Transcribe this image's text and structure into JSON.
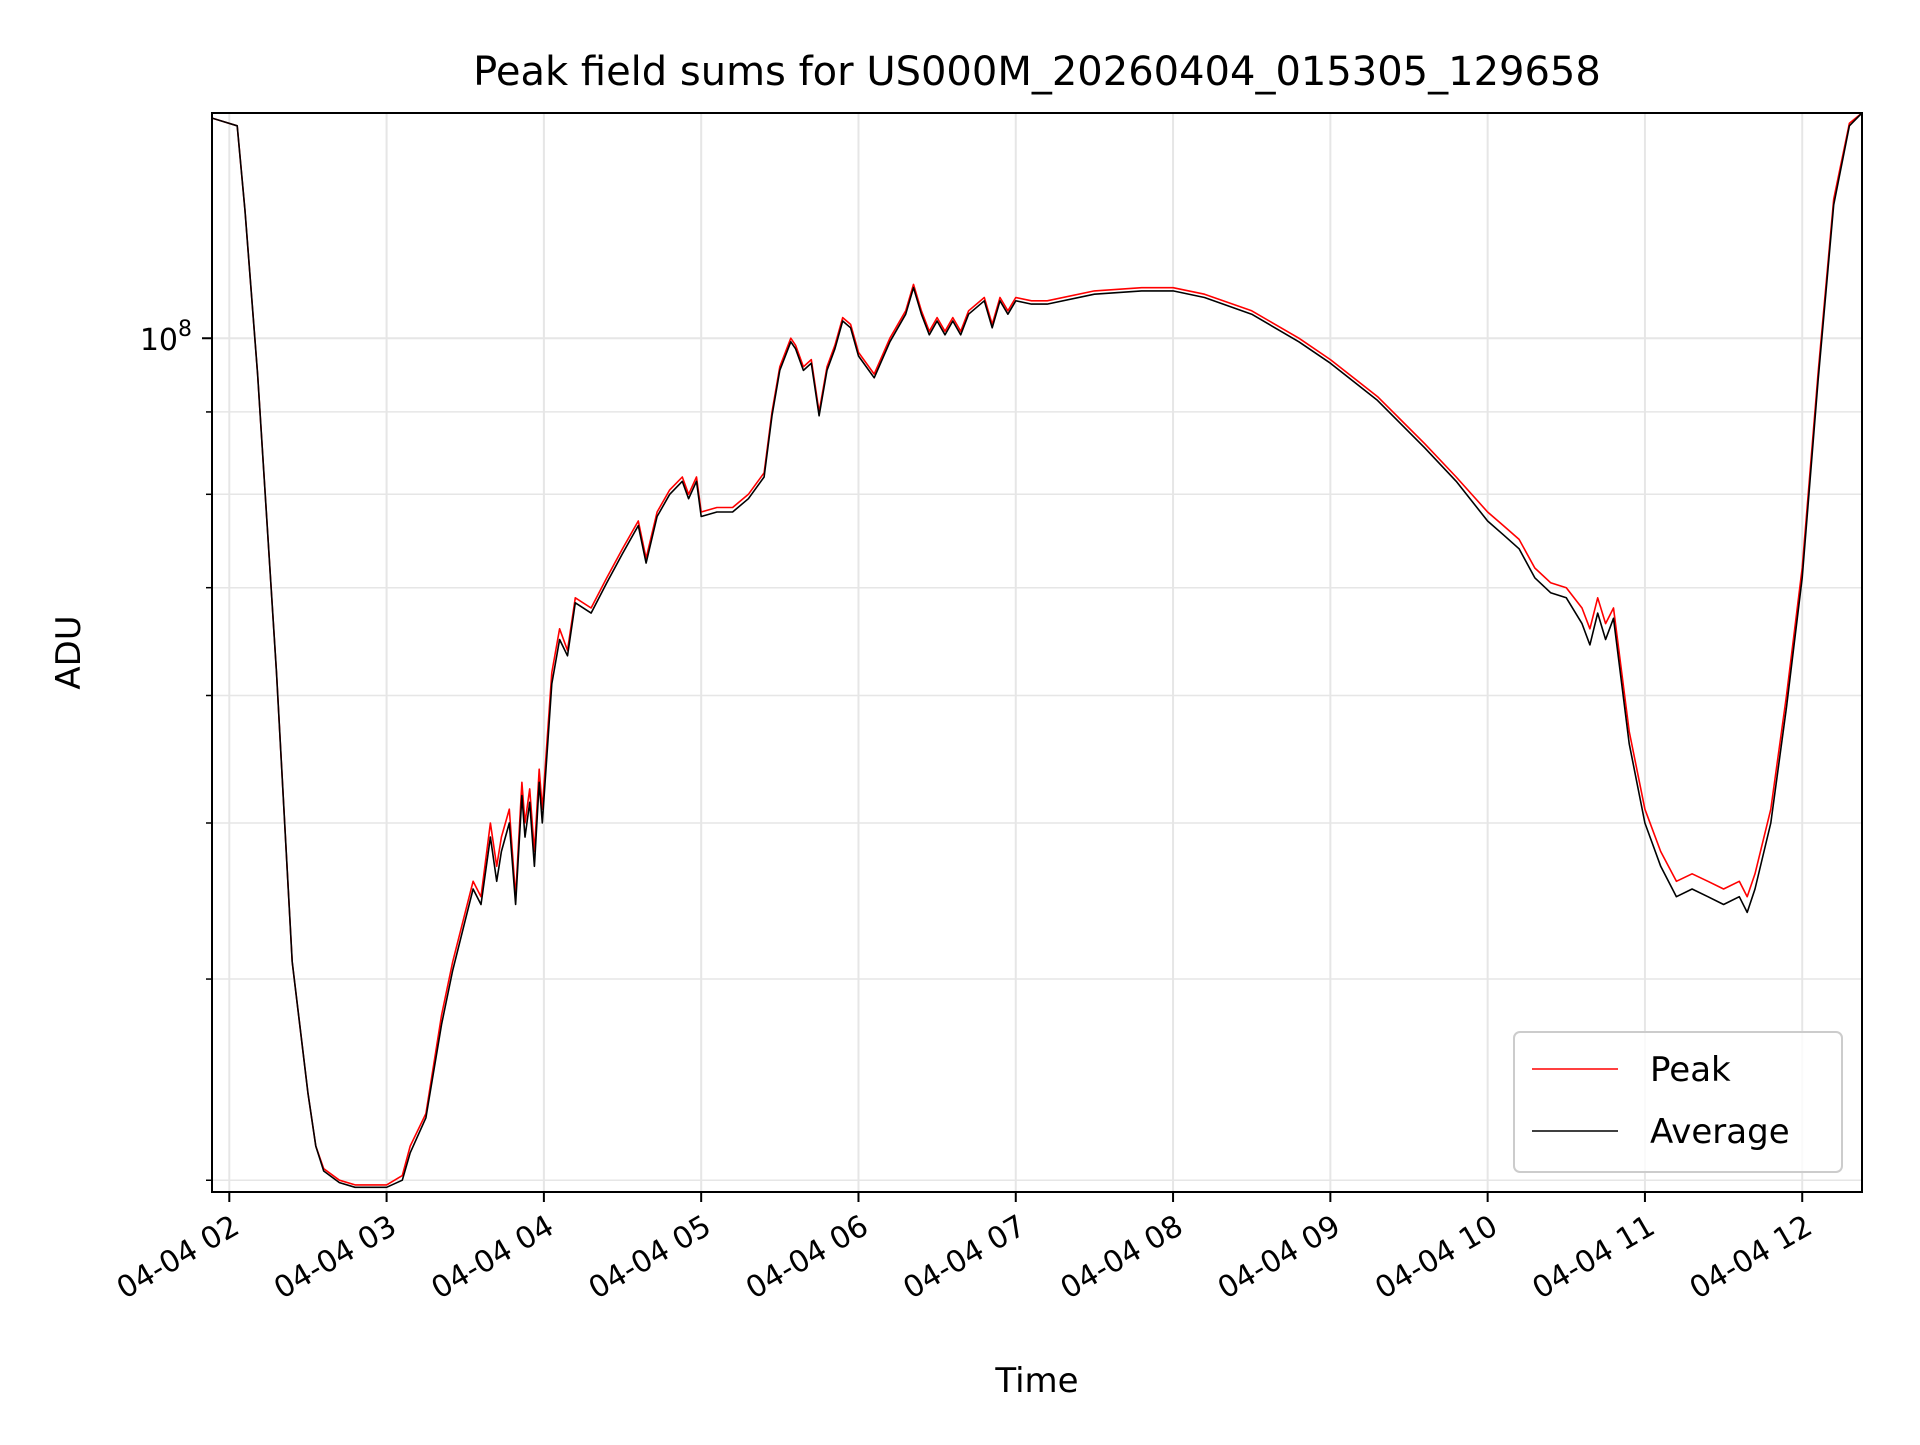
{
  "chart_data": {
    "type": "line",
    "title": "Peak field sums for US000M_20260404_015305_129658",
    "xlabel": "Time",
    "ylabel": "ADU",
    "yscale": "log",
    "xlim": [
      1.89,
      12.38
    ],
    "ylim": [
      29500000,
      138000000
    ],
    "grid": true,
    "x_tick_values": [
      2,
      3,
      4,
      5,
      6,
      7,
      8,
      9,
      10,
      11,
      12
    ],
    "x_tick_labels": [
      "04-04 02",
      "04-04 03",
      "04-04 04",
      "04-04 05",
      "04-04 06",
      "04-04 07",
      "04-04 08",
      "04-04 09",
      "04-04 10",
      "04-04 11",
      "04-04 12"
    ],
    "y_major_tick_values": [
      100000000
    ],
    "y_major_tick_labels": [
      {
        "base": "10",
        "exp": "8"
      }
    ],
    "y_minor_tick_values": [
      30000000,
      40000000,
      50000000,
      60000000,
      70000000,
      80000000,
      90000000
    ],
    "legend": {
      "position": "bottom-right",
      "entries": [
        "Peak",
        "Average"
      ]
    },
    "series": [
      {
        "name": "Peak",
        "color": "#ff0000",
        "x": [
          1.89,
          2.05,
          2.1,
          2.18,
          2.3,
          2.4,
          2.5,
          2.55,
          2.6,
          2.7,
          2.8,
          2.9,
          3.0,
          3.1,
          3.15,
          3.25,
          3.35,
          3.42,
          3.5,
          3.55,
          3.6,
          3.66,
          3.7,
          3.73,
          3.78,
          3.82,
          3.86,
          3.88,
          3.91,
          3.94,
          3.97,
          3.99,
          4.05,
          4.1,
          4.15,
          4.2,
          4.3,
          4.4,
          4.5,
          4.6,
          4.65,
          4.72,
          4.8,
          4.88,
          4.92,
          4.97,
          5.0,
          5.1,
          5.2,
          5.3,
          5.4,
          5.45,
          5.5,
          5.57,
          5.6,
          5.65,
          5.7,
          5.75,
          5.8,
          5.85,
          5.9,
          5.95,
          6.0,
          6.1,
          6.2,
          6.3,
          6.35,
          6.4,
          6.45,
          6.5,
          6.55,
          6.6,
          6.65,
          6.7,
          6.8,
          6.85,
          6.9,
          6.95,
          7.0,
          7.1,
          7.2,
          7.5,
          7.8,
          8.0,
          8.2,
          8.5,
          8.8,
          9.0,
          9.3,
          9.6,
          9.8,
          10.0,
          10.1,
          10.2,
          10.3,
          10.4,
          10.5,
          10.6,
          10.65,
          10.7,
          10.75,
          10.8,
          10.9,
          11.0,
          11.1,
          11.2,
          11.3,
          11.4,
          11.5,
          11.6,
          11.65,
          11.7,
          11.8,
          11.9,
          12.0,
          12.1,
          12.2,
          12.3,
          12.38
        ],
        "y": [
          137000000,
          135500000,
          120000000,
          95000000,
          62000000,
          41000000,
          34000000,
          31500000,
          30500000,
          30000000,
          29800000,
          29800000,
          29800000,
          30200000,
          31500000,
          33000000,
          38000000,
          41000000,
          44000000,
          46000000,
          45000000,
          50000000,
          47000000,
          49000000,
          51000000,
          45000000,
          53000000,
          50000000,
          52500000,
          48000000,
          54000000,
          51000000,
          62000000,
          66000000,
          64000000,
          69000000,
          68000000,
          71000000,
          74000000,
          77000000,
          73000000,
          78000000,
          80500000,
          82000000,
          80000000,
          82000000,
          78000000,
          78500000,
          78500000,
          80000000,
          82500000,
          90000000,
          96000000,
          100000000,
          99000000,
          96000000,
          97000000,
          90000000,
          96000000,
          99000000,
          103000000,
          102000000,
          98000000,
          95000000,
          100000000,
          104000000,
          108000000,
          104000000,
          101000000,
          103000000,
          101000000,
          103000000,
          101000000,
          104000000,
          106000000,
          102000000,
          106000000,
          104000000,
          106000000,
          105500000,
          105500000,
          107000000,
          107500000,
          107500000,
          106500000,
          104000000,
          100000000,
          97000000,
          92000000,
          86000000,
          82000000,
          78000000,
          76500000,
          75000000,
          72000000,
          70500000,
          70000000,
          68000000,
          66000000,
          69000000,
          66500000,
          68000000,
          57000000,
          51000000,
          48000000,
          46000000,
          46500000,
          46000000,
          45500000,
          46000000,
          45000000,
          46500000,
          51000000,
          60000000,
          72000000,
          95000000,
          122000000,
          136000000,
          138000000
        ]
      },
      {
        "name": "Average",
        "color": "#000000",
        "x": [
          1.89,
          2.05,
          2.1,
          2.18,
          2.3,
          2.4,
          2.5,
          2.55,
          2.6,
          2.7,
          2.8,
          2.9,
          3.0,
          3.1,
          3.15,
          3.25,
          3.35,
          3.42,
          3.5,
          3.55,
          3.6,
          3.66,
          3.7,
          3.73,
          3.78,
          3.82,
          3.86,
          3.88,
          3.91,
          3.94,
          3.97,
          3.99,
          4.05,
          4.1,
          4.15,
          4.2,
          4.3,
          4.4,
          4.5,
          4.6,
          4.65,
          4.72,
          4.8,
          4.88,
          4.92,
          4.97,
          5.0,
          5.1,
          5.2,
          5.3,
          5.4,
          5.45,
          5.5,
          5.57,
          5.6,
          5.65,
          5.7,
          5.75,
          5.8,
          5.85,
          5.9,
          5.95,
          6.0,
          6.1,
          6.2,
          6.3,
          6.35,
          6.4,
          6.45,
          6.5,
          6.55,
          6.6,
          6.65,
          6.7,
          6.8,
          6.85,
          6.9,
          6.95,
          7.0,
          7.1,
          7.2,
          7.5,
          7.8,
          8.0,
          8.2,
          8.5,
          8.8,
          9.0,
          9.3,
          9.6,
          9.8,
          10.0,
          10.1,
          10.2,
          10.3,
          10.4,
          10.5,
          10.6,
          10.65,
          10.7,
          10.75,
          10.8,
          10.9,
          11.0,
          11.1,
          11.2,
          11.3,
          11.4,
          11.5,
          11.6,
          11.65,
          11.7,
          11.8,
          11.9,
          12.0,
          12.1,
          12.2,
          12.3,
          12.38
        ],
        "y": [
          137000000,
          135500000,
          120000000,
          95000000,
          62000000,
          41000000,
          34000000,
          31500000,
          30400000,
          29900000,
          29700000,
          29700000,
          29700000,
          30000000,
          31200000,
          32800000,
          37500000,
          40500000,
          43500000,
          45500000,
          44500000,
          49000000,
          46000000,
          48000000,
          50000000,
          44500000,
          52000000,
          49000000,
          51500000,
          47000000,
          53000000,
          50000000,
          61000000,
          65000000,
          63500000,
          68500000,
          67500000,
          70500000,
          73500000,
          76500000,
          72500000,
          77500000,
          80000000,
          81500000,
          79500000,
          81500000,
          77500000,
          78000000,
          78000000,
          79500000,
          82000000,
          89500000,
          95500000,
          99500000,
          98500000,
          95500000,
          96500000,
          89500000,
          95500000,
          98500000,
          102500000,
          101500000,
          97500000,
          94500000,
          99500000,
          103500000,
          107500000,
          103500000,
          100500000,
          102500000,
          100500000,
          102500000,
          100500000,
          103500000,
          105500000,
          101500000,
          105500000,
          103500000,
          105500000,
          105000000,
          105000000,
          106500000,
          107000000,
          107000000,
          106000000,
          103500000,
          99500000,
          96500000,
          91500000,
          85500000,
          81500000,
          77000000,
          75500000,
          74000000,
          71000000,
          69500000,
          69000000,
          66500000,
          64500000,
          67500000,
          65000000,
          67000000,
          56000000,
          50000000,
          47000000,
          45000000,
          45500000,
          45000000,
          44500000,
          45000000,
          44000000,
          45500000,
          50000000,
          59000000,
          71000000,
          94000000,
          121000000,
          135500000,
          138000000
        ]
      }
    ]
  }
}
